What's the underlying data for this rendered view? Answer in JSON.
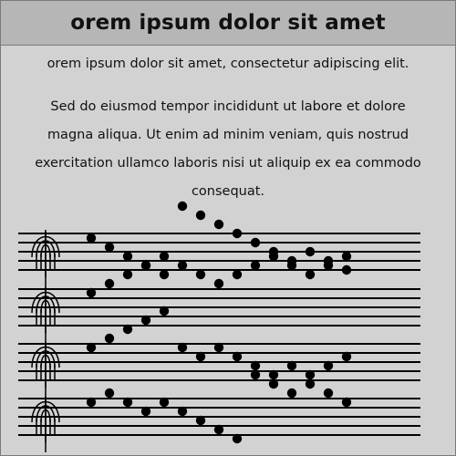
{
  "page": {
    "title": "orem ipsum dolor sit amet",
    "line1": "orem ipsum dolor sit amet, consectetur adipiscing elit.",
    "paragraph": "Sed do eiusmod tempor incididunt ut labore et dolore magna aliqua. Ut enim ad minim veniam, quis nostrud exercitation ullamco laboris nisi ut aliquip ex ea commodo consequat."
  },
  "colors": {
    "background": "#d2d2d2",
    "title_bar": "#b6b6b6",
    "ink": "#000000"
  },
  "icons": [
    "clef-icon"
  ]
}
